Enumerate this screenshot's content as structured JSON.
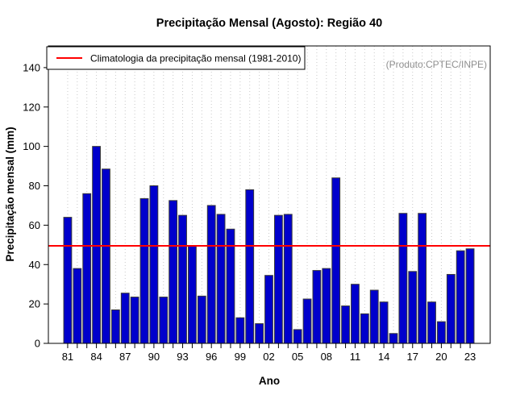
{
  "title": "Precipitação Mensal (Agosto): Região 40",
  "watermark": "(Produto:CPTEC/INPE)",
  "legend": {
    "label": "Climatologia da precipitação mensal (1981-2010)",
    "line_color": "#FF0000"
  },
  "chart_data": {
    "type": "bar",
    "title": "Precipitação Mensal (Agosto): Região 40",
    "xlabel": "Ano",
    "ylabel": "Precipitação mensal (mm)",
    "ylim": [
      0,
      151
    ],
    "yticks": [
      0,
      20,
      40,
      60,
      80,
      100,
      120,
      140
    ],
    "x_label_every": 3,
    "grid": "vertical-dotted",
    "legend_position": "top-left",
    "bar_color": "#0000CC",
    "bar_border_color": "#3a3a3a",
    "grid_color": "#c9c9c9",
    "climatology_value": 49.5,
    "climatology_color": "#FF0000",
    "categories": [
      "81",
      "82",
      "83",
      "84",
      "85",
      "86",
      "87",
      "88",
      "89",
      "90",
      "91",
      "92",
      "93",
      "94",
      "95",
      "96",
      "97",
      "98",
      "99",
      "00",
      "01",
      "02",
      "03",
      "04",
      "05",
      "06",
      "07",
      "08",
      "09",
      "10",
      "11",
      "12",
      "13",
      "14",
      "15",
      "16",
      "17",
      "18",
      "19",
      "20",
      "21",
      "22",
      "23"
    ],
    "values": [
      64,
      38,
      76,
      100,
      88.5,
      17,
      25.5,
      23.5,
      73.5,
      80,
      23.5,
      72.5,
      65,
      49.5,
      24,
      70,
      65.5,
      58,
      13,
      78,
      10,
      34.5,
      65,
      65.5,
      7,
      22.5,
      37,
      38,
      84,
      19,
      30,
      15,
      27,
      21,
      5,
      66,
      36.5,
      66,
      21,
      11,
      35,
      47,
      48
    ]
  }
}
